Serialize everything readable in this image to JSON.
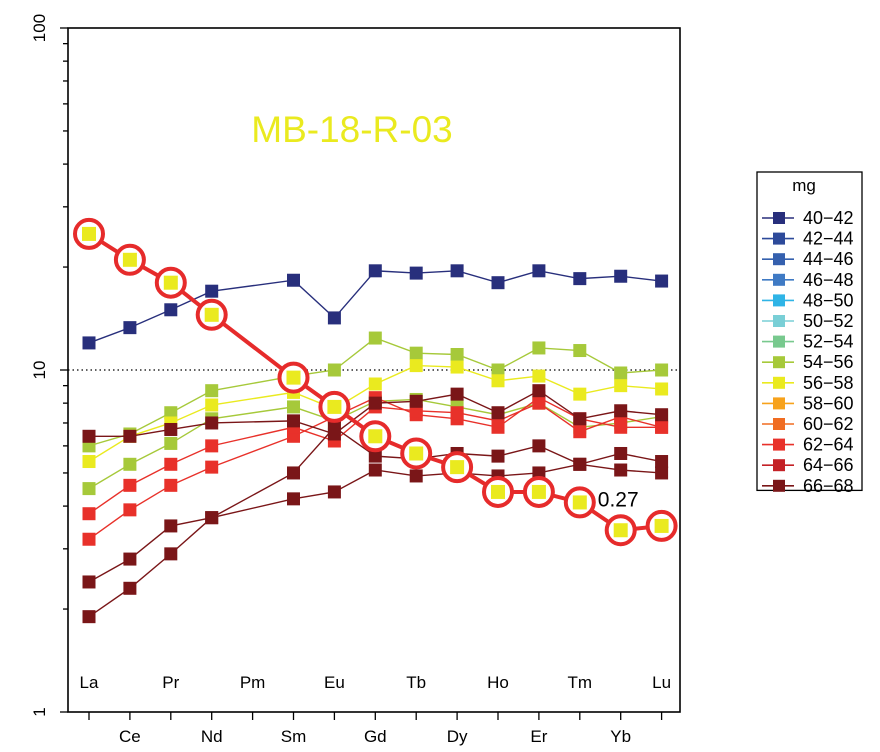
{
  "chart_data": {
    "type": "line",
    "y_scale": "log",
    "ylim": [
      1,
      100
    ],
    "y_ticks": [
      "1",
      "10",
      "100"
    ],
    "reference_line_y": 10,
    "annotation": "MB-18-R-03",
    "annotation_color": "#eaea1f",
    "categories": [
      "La",
      "Ce",
      "Pr",
      "Nd",
      "Pm",
      "Sm",
      "Eu",
      "Gd",
      "Tb",
      "Dy",
      "Ho",
      "Er",
      "Tm",
      "Yb",
      "Lu"
    ],
    "tick_labels_inside": [
      "La",
      "Pr",
      "Pm",
      "Eu",
      "Tb",
      "Ho",
      "Tm",
      "Lu"
    ],
    "tick_labels_below": [
      "Ce",
      "Nd",
      "Sm",
      "Gd",
      "Dy",
      "Er",
      "Yb"
    ],
    "legend": {
      "title": "mg",
      "entries": [
        {
          "label": "40−42",
          "color": "#282f7c"
        },
        {
          "label": "42−44",
          "color": "#2d4a9a"
        },
        {
          "label": "44−46",
          "color": "#3560ae"
        },
        {
          "label": "46−48",
          "color": "#3f7ac4"
        },
        {
          "label": "48−50",
          "color": "#2fb4e6"
        },
        {
          "label": "50−52",
          "color": "#79cfd6"
        },
        {
          "label": "52−54",
          "color": "#78c98e"
        },
        {
          "label": "54−56",
          "color": "#a6c93a"
        },
        {
          "label": "56−58",
          "color": "#eaea1f"
        },
        {
          "label": "58−60",
          "color": "#f7a21b"
        },
        {
          "label": "60−62",
          "color": "#f06c21"
        },
        {
          "label": "62−64",
          "color": "#e8312a"
        },
        {
          "label": "64−66",
          "color": "#c42126"
        },
        {
          "label": "66−68",
          "color": "#7a1618"
        }
      ]
    },
    "series": [
      {
        "color": "#282f7c",
        "values": [
          12,
          13.3,
          15,
          17,
          null,
          18.3,
          14.2,
          19.5,
          19.2,
          19.5,
          18,
          19.5,
          18.5,
          18.8,
          18.2
        ]
      },
      {
        "color": "#a6c93a",
        "values": [
          6,
          6.5,
          7.5,
          8.7,
          null,
          9.6,
          10,
          12.4,
          11.2,
          11.1,
          10,
          11.6,
          11.4,
          9.8,
          10
        ]
      },
      {
        "color": "#a6c93a",
        "values": [
          4.5,
          5.3,
          6.1,
          7.2,
          null,
          7.8,
          7.1,
          8.1,
          8.2,
          7.8,
          7.4,
          8.0,
          6.8,
          7.0,
          7.3
        ]
      },
      {
        "color": "#eaea1f",
        "values": [
          5.4,
          6.4,
          7.0,
          7.9,
          null,
          8.6,
          7.7,
          9.1,
          10.3,
          10.2,
          9.3,
          9.6,
          8.5,
          9.0,
          8.8
        ]
      },
      {
        "color": "#e8312a",
        "values": [
          3.2,
          3.9,
          4.6,
          5.2,
          null,
          6.4,
          7.3,
          8.3,
          7.4,
          7.2,
          6.8,
          8.3,
          7.2,
          6.8,
          6.8
        ]
      },
      {
        "color": "#e8312a",
        "values": [
          3.8,
          4.6,
          5.3,
          6.0,
          null,
          6.8,
          6.2,
          7.8,
          7.6,
          7.5,
          7.1,
          8.0,
          6.6,
          7.3,
          6.8
        ]
      },
      {
        "color": "#7a1618",
        "values": [
          6.4,
          6.4,
          6.7,
          7.0,
          null,
          7.1,
          6.5,
          8.0,
          8.1,
          8.5,
          7.5,
          8.7,
          7.2,
          7.6,
          7.4
        ]
      },
      {
        "color": "#7a1618",
        "values": [
          2.4,
          2.8,
          3.5,
          3.7,
          null,
          5.0,
          6.8,
          5.6,
          5.5,
          5.7,
          5.6,
          6.0,
          5.3,
          5.7,
          5.4
        ]
      },
      {
        "color": "#7a1618",
        "values": [
          1.9,
          2.3,
          2.9,
          3.7,
          null,
          4.2,
          4.4,
          5.1,
          4.9,
          5.0,
          4.9,
          5.0,
          5.3,
          5.1,
          5.0
        ]
      }
    ],
    "highlight": {
      "color": "#eaea1f",
      "ring_color": "#e62b2b",
      "values": [
        25.0,
        21.0,
        18.0,
        14.5,
        null,
        9.5,
        7.8,
        6.4,
        5.7,
        5.2,
        4.4,
        4.4,
        4.1,
        3.4,
        3.5
      ],
      "label": "0.27",
      "label_at": "Tm"
    }
  }
}
